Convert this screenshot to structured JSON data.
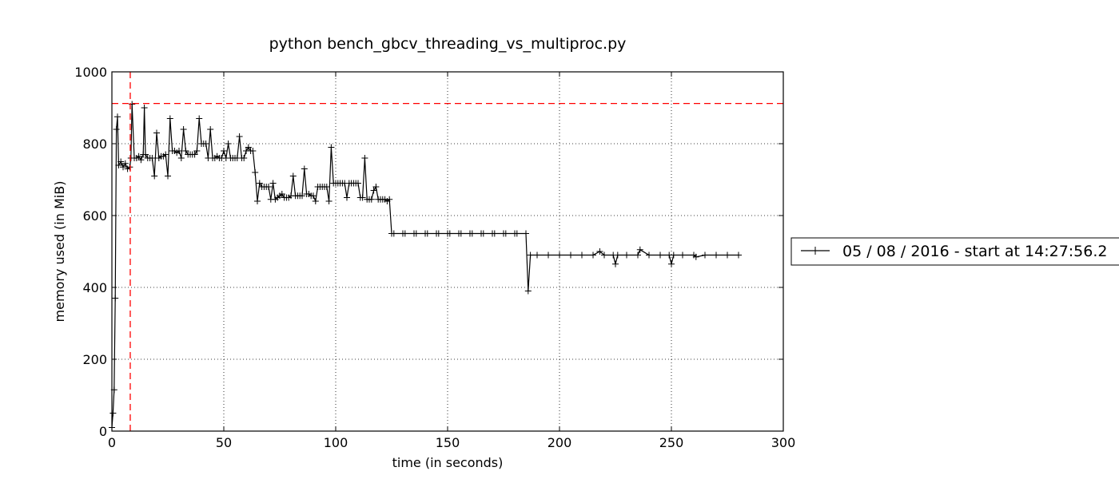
{
  "chart_data": {
    "type": "line",
    "title": "python bench_gbcv_threading_vs_multiproc.py",
    "xlabel": "time (in seconds)",
    "ylabel": "memory used (in MiB)",
    "xlim": [
      0,
      300
    ],
    "ylim": [
      0,
      1000
    ],
    "xticks": [
      0,
      50,
      100,
      150,
      200,
      250,
      300
    ],
    "yticks": [
      0,
      200,
      400,
      600,
      800,
      1000
    ],
    "grid": true,
    "legend_position": "right, outside",
    "series": [
      {
        "name": "05 / 08 / 2016 - start at 14:27:56.2",
        "color": "#000000",
        "marker": "+",
        "x": [
          0,
          0.5,
          1,
          1.5,
          2,
          2.5,
          3,
          4,
          5,
          6,
          7,
          8,
          8.5,
          9,
          10,
          11,
          12,
          13,
          14,
          14.5,
          15,
          16,
          17,
          18,
          19,
          20,
          21,
          22,
          23,
          24,
          25,
          26,
          27,
          28,
          29,
          30,
          31,
          32,
          33,
          34,
          35,
          36,
          37,
          38,
          39,
          40,
          41,
          42,
          43,
          44,
          45,
          46,
          47,
          48,
          49,
          50,
          51,
          52,
          53,
          54,
          55,
          56,
          57,
          58,
          59,
          60,
          61,
          62,
          63,
          64,
          65,
          66,
          67,
          68,
          69,
          70,
          71,
          72,
          73,
          74,
          75,
          76,
          77,
          78,
          79,
          80,
          81,
          82,
          83,
          84,
          85,
          86,
          87,
          88,
          89,
          90,
          91,
          92,
          93,
          94,
          95,
          96,
          97,
          98,
          99,
          100,
          101,
          102,
          103,
          104,
          105,
          106,
          107,
          108,
          109,
          110,
          111,
          112,
          113,
          114,
          115,
          116,
          117,
          118,
          119,
          120,
          121,
          122,
          123,
          124,
          125,
          126,
          130,
          131,
          135,
          136,
          140,
          141,
          145,
          146,
          150,
          151,
          155,
          156,
          160,
          161,
          165,
          166,
          170,
          171,
          175,
          176,
          180,
          181,
          185,
          186,
          187,
          190,
          195,
          200,
          205,
          210,
          215,
          218,
          220,
          224,
          225,
          226,
          230,
          235,
          236,
          240,
          245,
          249,
          250,
          251,
          255,
          260,
          261,
          265,
          270,
          275,
          280
        ],
        "y": [
          10,
          50,
          115,
          370,
          840,
          875,
          740,
          750,
          735,
          745,
          730,
          735,
          760,
          910,
          760,
          760,
          765,
          755,
          770,
          900,
          770,
          760,
          760,
          760,
          710,
          830,
          760,
          765,
          765,
          770,
          710,
          870,
          780,
          780,
          775,
          780,
          760,
          840,
          780,
          770,
          770,
          770,
          770,
          780,
          870,
          800,
          800,
          800,
          760,
          840,
          760,
          760,
          765,
          760,
          760,
          780,
          760,
          800,
          760,
          760,
          760,
          760,
          820,
          760,
          760,
          780,
          790,
          780,
          780,
          720,
          640,
          690,
          680,
          680,
          680,
          680,
          645,
          690,
          645,
          650,
          655,
          660,
          650,
          650,
          650,
          655,
          710,
          655,
          655,
          655,
          655,
          730,
          660,
          660,
          655,
          655,
          640,
          680,
          680,
          680,
          680,
          680,
          640,
          790,
          690,
          690,
          690,
          690,
          690,
          690,
          650,
          690,
          690,
          690,
          690,
          690,
          650,
          650,
          760,
          645,
          645,
          645,
          670,
          680,
          645,
          645,
          645,
          645,
          640,
          645,
          550,
          550,
          550,
          550,
          550,
          550,
          550,
          550,
          550,
          550,
          550,
          550,
          550,
          550,
          550,
          550,
          550,
          550,
          550,
          550,
          550,
          550,
          550,
          550,
          550,
          390,
          490,
          490,
          490,
          490,
          490,
          490,
          490,
          500,
          490,
          490,
          465,
          490,
          490,
          490,
          505,
          490,
          490,
          490,
          465,
          490,
          490,
          490,
          485,
          490,
          490,
          490,
          490
        ]
      },
      {
        "name": "",
        "color": "#ff0000",
        "style": "dashed-horizontal",
        "y": 912
      },
      {
        "name": "",
        "color": "#ff0000",
        "style": "dashed-vertical",
        "x": 8.2
      }
    ]
  }
}
